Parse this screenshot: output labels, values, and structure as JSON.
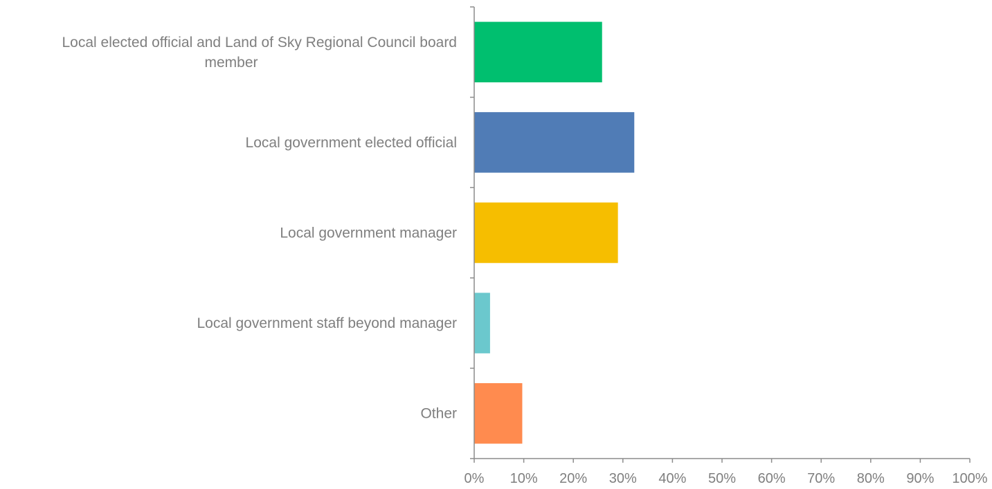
{
  "chart_data": {
    "type": "bar",
    "orientation": "horizontal",
    "categories": [
      "Local elected official and Land of Sky Regional Council board member",
      "Local government elected official",
      "Local government manager",
      "Local government staff beyond manager",
      "Other"
    ],
    "category_lines": [
      [
        "Local elected official and Land of Sky Regional Council board",
        "member"
      ],
      [
        "Local government elected official"
      ],
      [
        "Local government manager"
      ],
      [
        "Local government staff beyond manager"
      ],
      [
        "Other"
      ]
    ],
    "values": [
      25.8,
      32.3,
      29.0,
      3.2,
      9.7
    ],
    "colors": [
      "#00bf6f",
      "#507cb6",
      "#f6be00",
      "#6bc8cd",
      "#ff8b4f"
    ],
    "xlim": [
      0,
      100
    ],
    "x_ticks": [
      0,
      10,
      20,
      30,
      40,
      50,
      60,
      70,
      80,
      90,
      100
    ],
    "x_tick_labels": [
      "0%",
      "10%",
      "20%",
      "30%",
      "40%",
      "50%",
      "60%",
      "70%",
      "80%",
      "90%",
      "100%"
    ],
    "grid": false,
    "legend": "none",
    "title": "",
    "xlabel": "",
    "ylabel": ""
  }
}
